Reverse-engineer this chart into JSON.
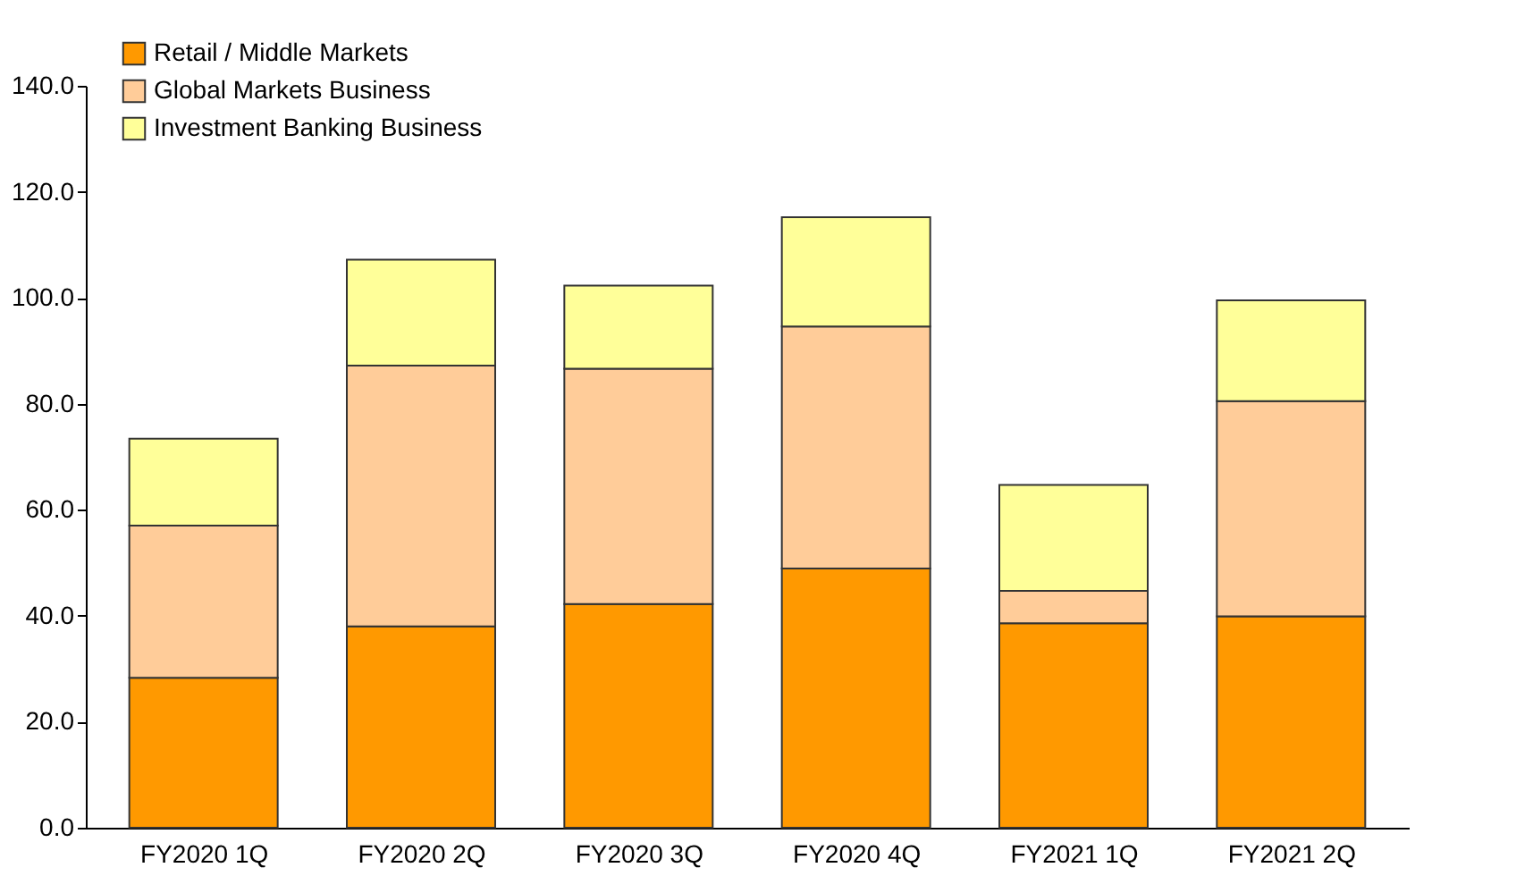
{
  "chart_data": {
    "type": "bar",
    "stacked": true,
    "legend": "top left",
    "grid": false,
    "categories": [
      "FY2020 1Q",
      "FY2020 2Q",
      "FY2020 3Q",
      "FY2020 4Q",
      "FY2021 1Q",
      "FY2021 2Q"
    ],
    "ylim": [
      0,
      140
    ],
    "yticks": [
      {
        "value": 0,
        "label": "0.0"
      },
      {
        "value": 20,
        "label": "20.0"
      },
      {
        "value": 40,
        "label": "40.0"
      },
      {
        "value": 60,
        "label": "60.0"
      },
      {
        "value": 80,
        "label": "80.0"
      },
      {
        "value": 100,
        "label": "100.0"
      },
      {
        "value": 120,
        "label": "120.0"
      },
      {
        "value": 140,
        "label": "140.0"
      }
    ],
    "series": [
      {
        "name": "Retail / Middle Markets",
        "color": "#ff9900",
        "values": [
          28.3,
          38.0,
          42.2,
          48.9,
          38.6,
          39.9
        ]
      },
      {
        "name": "Global Markets Business",
        "color": "#ffcc99",
        "values": [
          28.7,
          49.2,
          44.4,
          45.7,
          6.1,
          40.6
        ]
      },
      {
        "name": "Investment Banking Business",
        "color": "#ffff99",
        "values": [
          16.4,
          20.0,
          15.7,
          20.6,
          20.0,
          19.0
        ]
      }
    ]
  }
}
